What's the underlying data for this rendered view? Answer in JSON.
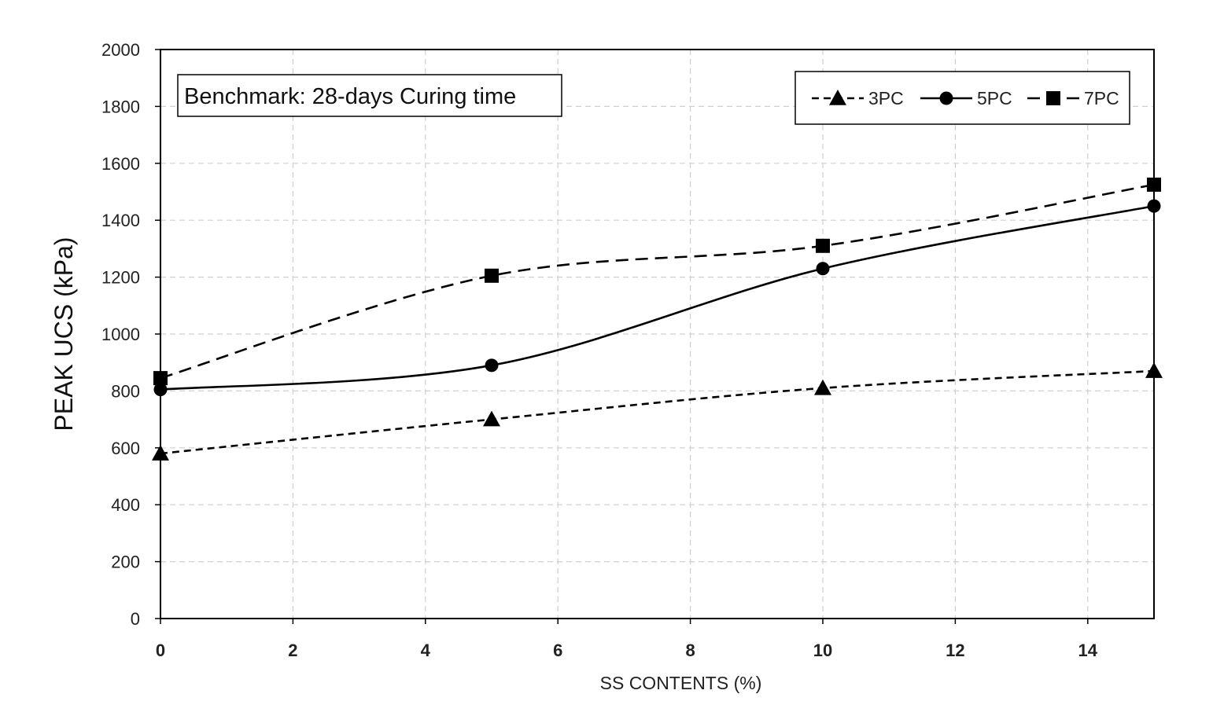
{
  "chart_data": {
    "type": "line",
    "title": "",
    "annotation": "Benchmark: 28-days Curing time",
    "xlabel": "SS CONTENTS (%)",
    "ylabel": "PEAK UCS (kPa)",
    "xlim": [
      0,
      15
    ],
    "ylim": [
      0,
      2000
    ],
    "x_ticks": [
      0,
      2,
      4,
      6,
      8,
      10,
      12,
      14
    ],
    "y_ticks": [
      0,
      200,
      400,
      600,
      800,
      1000,
      1200,
      1400,
      1600,
      1800,
      2000
    ],
    "grid": true,
    "legend_position": "top-right",
    "x": [
      0,
      5,
      10,
      15
    ],
    "series": [
      {
        "name": "3PC",
        "values": [
          580,
          700,
          810,
          870
        ],
        "marker": "triangle",
        "line_style": "short-dash",
        "color": "#000000"
      },
      {
        "name": "5PC",
        "values": [
          805,
          890,
          1230,
          1450
        ],
        "marker": "circle",
        "line_style": "solid",
        "color": "#000000"
      },
      {
        "name": "7PC",
        "values": [
          845,
          1205,
          1310,
          1525
        ],
        "marker": "square",
        "line_style": "long-dash",
        "color": "#000000"
      }
    ]
  }
}
